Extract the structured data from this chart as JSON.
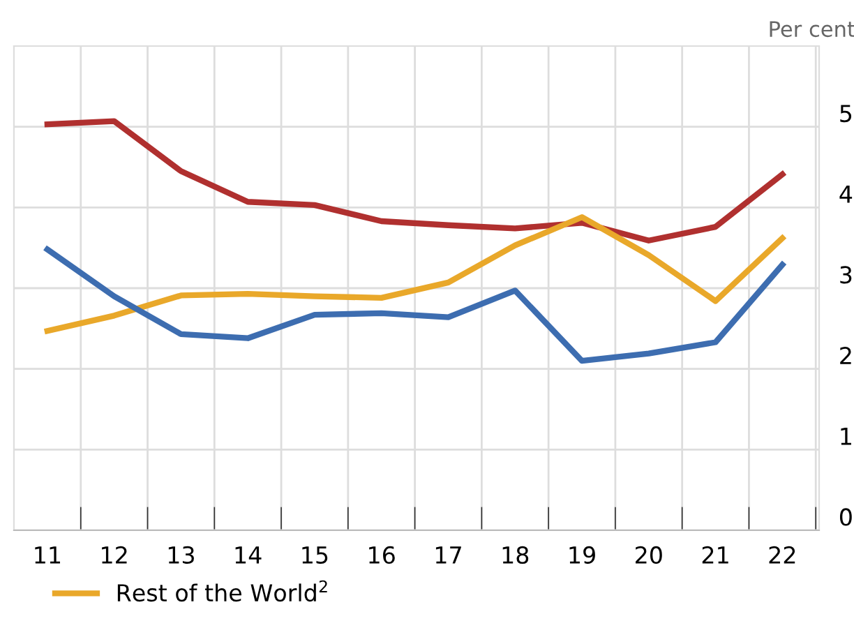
{
  "chart_data": {
    "type": "line",
    "ylabel": "Per cent",
    "categories": [
      "11",
      "12",
      "13",
      "14",
      "15",
      "16",
      "17",
      "18",
      "19",
      "20",
      "21",
      "22"
    ],
    "ylim": [
      0,
      6
    ],
    "yticks": [
      0,
      1,
      2,
      3,
      4,
      5
    ],
    "grid": true,
    "legend": "bottom left",
    "marker": "none",
    "line_style": "solid",
    "series": [
      {
        "color": "#b0302f",
        "values": [
          5.03,
          5.07,
          4.45,
          4.07,
          4.03,
          3.83,
          3.78,
          3.74,
          3.81,
          3.59,
          3.76,
          4.41
        ]
      },
      {
        "name": "Rest of the World$^{2}$",
        "color": "#e9a82a",
        "values": [
          2.47,
          2.66,
          2.91,
          2.93,
          2.9,
          2.88,
          3.07,
          3.53,
          3.88,
          3.41,
          2.84,
          3.62
        ]
      },
      {
        "color": "#3d6db0",
        "values": [
          3.48,
          2.9,
          2.43,
          2.38,
          2.67,
          2.69,
          2.64,
          2.97,
          2.1,
          2.19,
          2.33,
          3.29
        ]
      }
    ]
  }
}
